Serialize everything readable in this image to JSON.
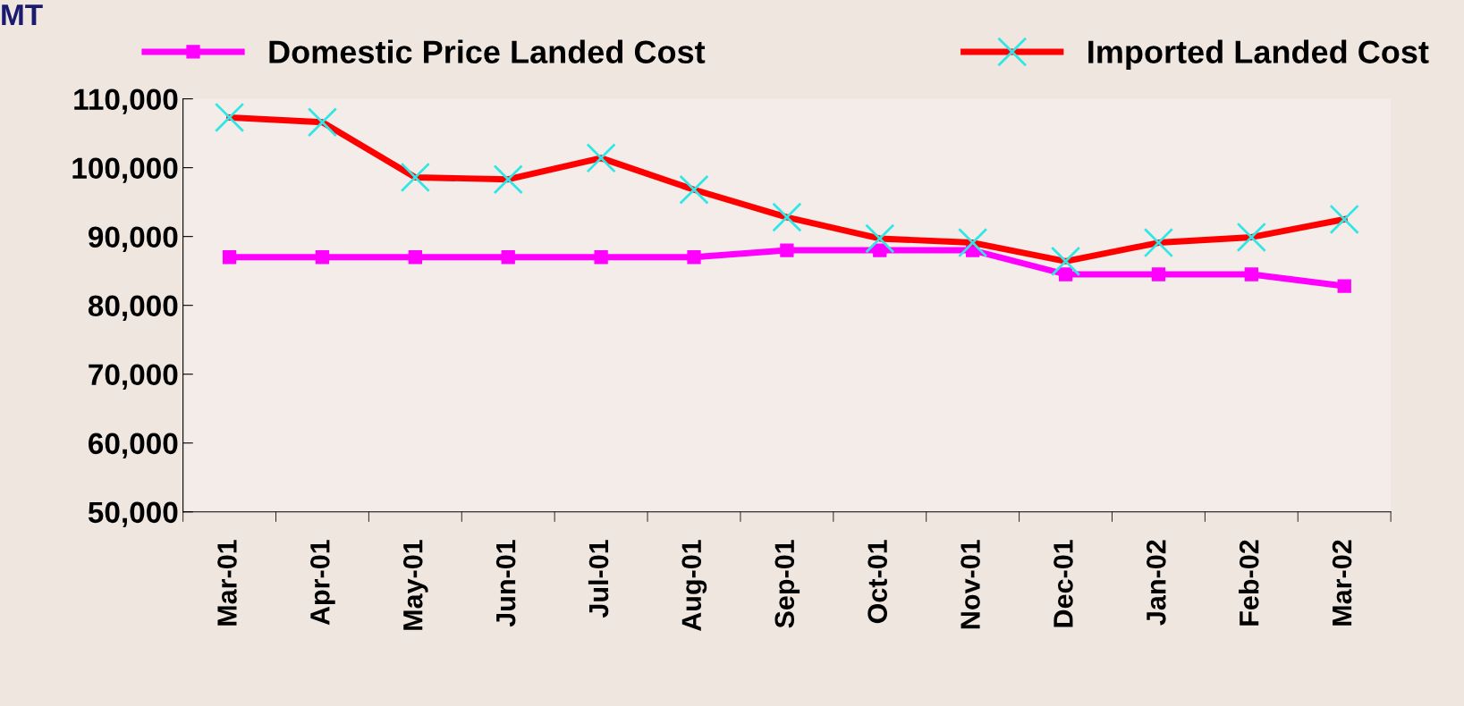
{
  "chart_data": {
    "type": "line",
    "ylabel": "MT",
    "categories": [
      "Mar-01",
      "Apr-01",
      "May-01",
      "Jun-01",
      "Jul-01",
      "Aug-01",
      "Sep-01",
      "Oct-01",
      "Nov-01",
      "Dec-01",
      "Jan-02",
      "Feb-02",
      "Mar-02"
    ],
    "series": [
      {
        "name": "Domestic Price Landed Cost",
        "color": "#ff00ff",
        "marker": "square",
        "values": [
          87000,
          87000,
          87000,
          87000,
          87000,
          87000,
          88000,
          88000,
          88000,
          84500,
          84500,
          84500,
          82800
        ]
      },
      {
        "name": "Imported Landed Cost",
        "color": "#ff0000",
        "marker": "cross",
        "values": [
          107300,
          106600,
          98600,
          98300,
          101400,
          96800,
          92800,
          89700,
          89100,
          86400,
          89100,
          89900,
          92500
        ]
      }
    ],
    "ylim": [
      50000,
      110000
    ],
    "yticks": [
      {
        "value": 50000,
        "label": "50,000"
      },
      {
        "value": 60000,
        "label": "60,000"
      },
      {
        "value": 70000,
        "label": "70,000"
      },
      {
        "value": 80000,
        "label": "80,000"
      },
      {
        "value": 90000,
        "label": "90,000"
      },
      {
        "value": 100000,
        "label": "100,000"
      },
      {
        "value": 110000,
        "label": "110,000"
      }
    ],
    "legend": "top",
    "grid": false,
    "line_style": "solid"
  }
}
